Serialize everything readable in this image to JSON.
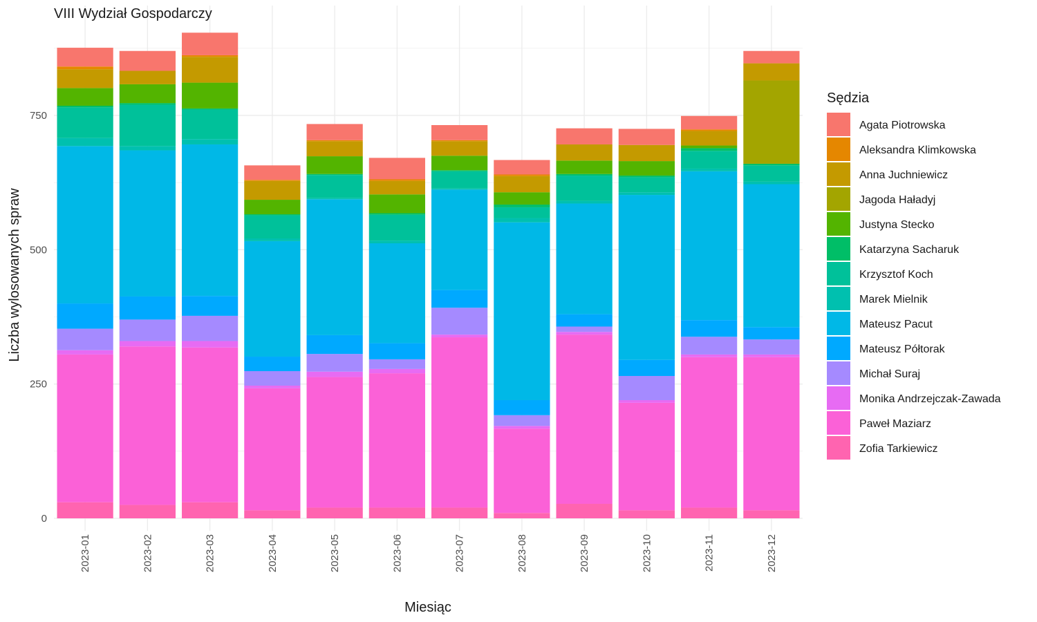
{
  "chart_data": {
    "type": "bar",
    "stacked": true,
    "title": "VIII Wydział Gospodarczy",
    "xlabel": "Miesiąc",
    "ylabel": "Liczba wylosowanych spraw",
    "ylim": [
      0,
      930
    ],
    "yticks": [
      0,
      250,
      500,
      750
    ],
    "grid": true,
    "legend_title": "Sędzia",
    "legend_position": "right",
    "categories": [
      "2023-01",
      "2023-02",
      "2023-03",
      "2023-04",
      "2023-05",
      "2023-06",
      "2023-07",
      "2023-08",
      "2023-09",
      "2023-10",
      "2023-11",
      "2023-12"
    ],
    "series": [
      {
        "name": "Zofia Tarkiewicz",
        "color": "#FF64B0",
        "values": [
          30,
          25,
          30,
          15,
          20,
          20,
          20,
          10,
          27,
          15,
          20,
          15
        ]
      },
      {
        "name": "Paweł Maziarz",
        "color": "#FB61D7",
        "values": [
          275,
          295,
          288,
          227,
          243,
          250,
          317,
          157,
          315,
          200,
          280,
          285
        ]
      },
      {
        "name": "Monika Andrzejczak-Zawada",
        "color": "#E76BF3",
        "values": [
          8,
          10,
          12,
          5,
          10,
          8,
          5,
          5,
          5,
          5,
          5,
          5
        ]
      },
      {
        "name": "Michał Suraj",
        "color": "#A58AFF",
        "values": [
          40,
          40,
          47,
          27,
          33,
          18,
          50,
          20,
          10,
          45,
          33,
          28
        ]
      },
      {
        "name": "Mateusz Półtorak",
        "color": "#00A9FF",
        "values": [
          47,
          43,
          37,
          27,
          35,
          30,
          33,
          28,
          23,
          30,
          31,
          23
        ]
      },
      {
        "name": "Mateusz Pacut",
        "color": "#00B8E7",
        "values": [
          293,
          272,
          282,
          215,
          253,
          186,
          187,
          331,
          206,
          307,
          277,
          266
        ]
      },
      {
        "name": "Marek Mielnik",
        "color": "#00C0AF",
        "values": [
          15,
          8,
          10,
          5,
          2,
          5,
          2,
          8,
          5,
          5,
          5,
          5
        ]
      },
      {
        "name": "Krzysztof Koch",
        "color": "#00C19A",
        "values": [
          57,
          77,
          55,
          43,
          43,
          48,
          32,
          20,
          47,
          28,
          33,
          30
        ]
      },
      {
        "name": "Katarzyna Sacharuk",
        "color": "#00BE67",
        "values": [
          3,
          3,
          2,
          2,
          2,
          3,
          2,
          5,
          3,
          3,
          5,
          3
        ]
      },
      {
        "name": "Justyna Stecko",
        "color": "#53B400",
        "values": [
          33,
          35,
          48,
          27,
          33,
          35,
          27,
          23,
          25,
          27,
          5,
          0
        ]
      },
      {
        "name": "Jagoda Haładyj",
        "color": "#A3A500",
        "values": [
          0,
          0,
          0,
          0,
          0,
          0,
          0,
          0,
          0,
          0,
          0,
          155
        ]
      },
      {
        "name": "Anna Juchniewicz",
        "color": "#C49A00",
        "values": [
          35,
          25,
          48,
          35,
          28,
          25,
          27,
          30,
          30,
          30,
          27,
          32
        ]
      },
      {
        "name": "Aleksandra Klimkowska",
        "color": "#E58700",
        "values": [
          5,
          0,
          3,
          2,
          2,
          3,
          2,
          3,
          0,
          0,
          3,
          0
        ]
      },
      {
        "name": "Agata Piotrowska",
        "color": "#F8766D",
        "values": [
          35,
          37,
          42,
          27,
          30,
          40,
          28,
          27,
          30,
          30,
          25,
          23
        ]
      }
    ]
  }
}
